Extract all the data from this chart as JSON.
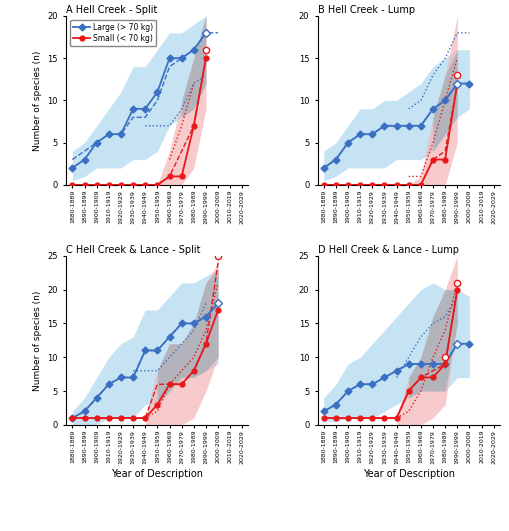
{
  "x_labels": [
    "1880-1889",
    "1890-1899",
    "1900-1909",
    "1910-1919",
    "1920-1929",
    "1930-1939",
    "1940-1949",
    "1950-1959",
    "1960-1969",
    "1970-1979",
    "1980-1989",
    "1990-1999",
    "2000-2009",
    "2010-2019",
    "2020-2029"
  ],
  "panels": [
    {
      "title": "A Hell Creek - Split",
      "ylim": [
        0,
        20
      ],
      "yticks": [
        0,
        5,
        10,
        15,
        20
      ],
      "blue_mean": [
        2,
        3,
        5,
        6,
        6,
        9,
        9,
        11,
        15,
        15,
        16,
        18,
        null,
        null,
        null
      ],
      "blue_upper": [
        4,
        5,
        7,
        9,
        11,
        14,
        14,
        16,
        18,
        18,
        19,
        20,
        null,
        null,
        null
      ],
      "blue_lower": [
        0.5,
        1,
        2,
        2,
        2,
        3,
        3,
        4,
        7,
        8,
        9,
        12,
        null,
        null,
        null
      ],
      "blue_dashed": [
        3,
        4,
        5,
        6,
        6,
        8,
        8,
        10,
        14,
        15,
        16,
        18,
        18,
        null,
        null
      ],
      "blue_dotted": [
        null,
        null,
        null,
        null,
        null,
        null,
        7,
        7,
        7,
        9,
        12,
        13,
        null,
        null,
        null
      ],
      "blue_open": [
        null,
        null,
        null,
        null,
        null,
        null,
        null,
        null,
        null,
        null,
        null,
        18,
        null,
        null,
        null
      ],
      "red_mean": [
        0,
        0,
        0,
        0,
        0,
        0,
        0,
        0,
        1,
        1,
        7,
        15,
        null,
        null,
        null
      ],
      "red_upper": [
        null,
        null,
        null,
        null,
        null,
        null,
        null,
        0,
        4,
        10,
        15,
        20,
        null,
        null,
        null
      ],
      "red_lower": [
        null,
        null,
        null,
        null,
        null,
        null,
        null,
        0,
        0,
        0,
        2,
        9,
        null,
        null,
        null
      ],
      "red_dashed": [
        0,
        0,
        0,
        0,
        0,
        0,
        0,
        0,
        1,
        4,
        7,
        15,
        null,
        null,
        null
      ],
      "red_dotted": [
        null,
        null,
        null,
        null,
        null,
        null,
        null,
        null,
        3,
        7,
        12,
        null,
        null,
        null,
        null
      ],
      "red_open": [
        null,
        null,
        null,
        null,
        null,
        null,
        null,
        null,
        null,
        null,
        null,
        16,
        null,
        null,
        null
      ]
    },
    {
      "title": "B Hell Creek - Lump",
      "ylim": [
        0,
        20
      ],
      "yticks": [
        0,
        5,
        10,
        15,
        20
      ],
      "blue_mean": [
        2,
        3,
        5,
        6,
        6,
        7,
        7,
        7,
        7,
        9,
        10,
        12,
        12,
        null,
        null
      ],
      "blue_upper": [
        4,
        5,
        7,
        9,
        9,
        10,
        10,
        11,
        12,
        14,
        15,
        16,
        16,
        null,
        null
      ],
      "blue_lower": [
        0.5,
        1,
        2,
        2,
        2,
        2,
        3,
        3,
        3,
        4,
        6,
        8,
        9,
        null,
        null
      ],
      "blue_dashed": [
        2,
        3,
        5,
        6,
        6,
        7,
        7,
        7,
        7,
        9,
        10,
        12,
        12,
        null,
        null
      ],
      "blue_dotted": [
        null,
        null,
        null,
        null,
        null,
        null,
        null,
        9,
        10,
        13,
        15,
        18,
        18,
        null,
        null
      ],
      "blue_open": [
        null,
        null,
        null,
        null,
        null,
        null,
        null,
        null,
        null,
        null,
        null,
        12,
        null,
        null,
        null
      ],
      "red_mean": [
        0,
        0,
        0,
        0,
        0,
        0,
        0,
        0,
        0,
        3,
        3,
        12,
        null,
        null,
        null
      ],
      "red_upper": [
        null,
        null,
        null,
        null,
        null,
        null,
        null,
        0,
        1,
        8,
        13,
        20,
        null,
        null,
        null
      ],
      "red_lower": [
        null,
        null,
        null,
        null,
        null,
        null,
        null,
        0,
        0,
        0,
        0,
        5,
        null,
        null,
        null
      ],
      "red_dashed": [
        0,
        0,
        0,
        0,
        0,
        0,
        0,
        0,
        0,
        3,
        4,
        12,
        null,
        null,
        null
      ],
      "red_dotted": [
        null,
        null,
        null,
        null,
        null,
        null,
        null,
        1,
        1,
        5,
        10,
        15,
        null,
        null,
        null
      ],
      "red_open": [
        null,
        null,
        null,
        null,
        null,
        null,
        null,
        null,
        null,
        null,
        null,
        13,
        null,
        null,
        null
      ]
    },
    {
      "title": "C Hell Creek & Lance - Split",
      "ylim": [
        0,
        25
      ],
      "yticks": [
        0,
        5,
        10,
        15,
        20,
        25
      ],
      "blue_mean": [
        1,
        2,
        4,
        6,
        7,
        7,
        11,
        11,
        13,
        15,
        15,
        16,
        18,
        null,
        null
      ],
      "blue_upper": [
        2,
        4,
        7,
        10,
        12,
        13,
        17,
        17,
        19,
        21,
        21,
        22,
        23,
        null,
        null
      ],
      "blue_lower": [
        0,
        0,
        0,
        1,
        1,
        1,
        3,
        3,
        5,
        7,
        7,
        8,
        9,
        null,
        null
      ],
      "blue_dashed": [
        1,
        2,
        4,
        6,
        7,
        7,
        11,
        11,
        13,
        15,
        15,
        16,
        18,
        null,
        null
      ],
      "blue_dotted": [
        null,
        null,
        null,
        null,
        null,
        8,
        8,
        8,
        10,
        12,
        14,
        18,
        null,
        null,
        null
      ],
      "blue_open": [
        null,
        null,
        null,
        null,
        null,
        null,
        null,
        null,
        null,
        null,
        null,
        null,
        18,
        null,
        null
      ],
      "red_mean": [
        1,
        1,
        1,
        1,
        1,
        1,
        1,
        3,
        6,
        6,
        8,
        12,
        17,
        null,
        null
      ],
      "red_upper": [
        null,
        null,
        null,
        null,
        null,
        null,
        1,
        8,
        12,
        12,
        15,
        21,
        24,
        null,
        null
      ],
      "red_lower": [
        null,
        null,
        null,
        null,
        null,
        null,
        0,
        0,
        0,
        0,
        1,
        5,
        10,
        null,
        null
      ],
      "red_dashed": [
        1,
        1,
        1,
        1,
        1,
        1,
        1,
        6,
        6,
        6,
        8,
        12,
        24,
        null,
        null
      ],
      "red_dotted": [
        null,
        null,
        null,
        null,
        null,
        null,
        1,
        2,
        6,
        8,
        10,
        14,
        21,
        null,
        null
      ],
      "red_open": [
        null,
        null,
        null,
        null,
        null,
        null,
        null,
        null,
        null,
        null,
        null,
        null,
        25,
        null,
        null
      ]
    },
    {
      "title": "D Hell Creek & Lance - Lump",
      "ylim": [
        0,
        25
      ],
      "yticks": [
        0,
        5,
        10,
        15,
        20,
        25
      ],
      "blue_mean": [
        2,
        3,
        5,
        6,
        6,
        7,
        8,
        9,
        9,
        9,
        9,
        12,
        12,
        null,
        null
      ],
      "blue_upper": [
        4,
        6,
        9,
        10,
        12,
        14,
        16,
        18,
        20,
        21,
        20,
        20,
        19,
        null,
        null
      ],
      "blue_lower": [
        0.5,
        0.5,
        1,
        1,
        1,
        2,
        3,
        4,
        5,
        5,
        5,
        7,
        7,
        null,
        null
      ],
      "blue_dashed": [
        2,
        3,
        5,
        6,
        6,
        7,
        8,
        9,
        9,
        9,
        9,
        12,
        12,
        null,
        null
      ],
      "blue_dotted": [
        null,
        null,
        null,
        null,
        null,
        null,
        7,
        10,
        13,
        15,
        16,
        19,
        null,
        null,
        null
      ],
      "blue_open": [
        null,
        null,
        null,
        null,
        null,
        null,
        null,
        null,
        null,
        null,
        null,
        12,
        null,
        null,
        null
      ],
      "red_mean": [
        1,
        1,
        1,
        1,
        1,
        1,
        1,
        5,
        7,
        7,
        9,
        20,
        null,
        null,
        null
      ],
      "red_upper": [
        null,
        null,
        null,
        null,
        null,
        null,
        1,
        7,
        10,
        16,
        20,
        25,
        null,
        null,
        null
      ],
      "red_lower": [
        null,
        null,
        null,
        null,
        null,
        null,
        0,
        0,
        0,
        1,
        3,
        15,
        null,
        null,
        null
      ],
      "red_dashed": [
        1,
        1,
        1,
        1,
        1,
        1,
        1,
        5,
        7,
        8,
        9,
        20,
        null,
        null,
        null
      ],
      "red_dotted": [
        null,
        null,
        null,
        null,
        null,
        null,
        1,
        2,
        5,
        10,
        14,
        21,
        null,
        null,
        null
      ],
      "red_open": [
        null,
        null,
        null,
        null,
        null,
        null,
        null,
        null,
        null,
        null,
        10,
        21,
        null,
        null,
        null
      ]
    }
  ],
  "blue_color": "#3A6FC4",
  "red_color": "#E8191A",
  "blue_fill_color": "#A8D4EE",
  "red_fill_color": "#F4AFAF",
  "gray_fill_color": "#9AACB8",
  "xlabel": "Year of Description",
  "ylabel": "Number of species (n)"
}
